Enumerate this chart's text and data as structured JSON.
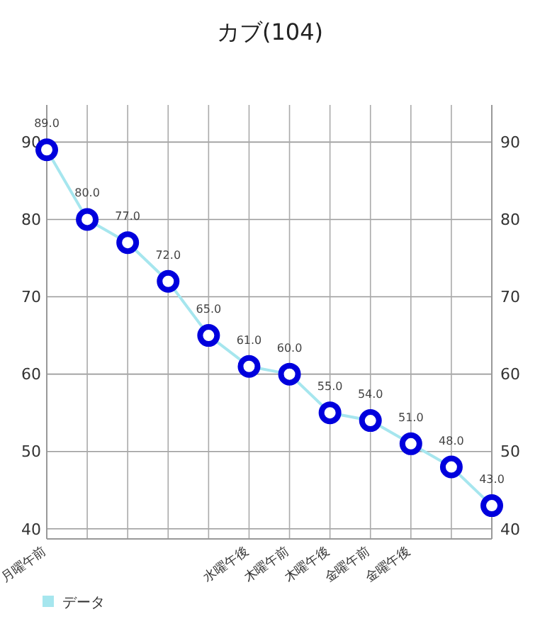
{
  "chart_data": {
    "type": "line",
    "title": "カブ(104)",
    "categories": [
      "月曜午前",
      null,
      null,
      null,
      null,
      "水曜午後",
      "木曜午前",
      "木曜午後",
      "金曜午前",
      "金曜午後",
      null,
      null
    ],
    "series": [
      {
        "name": "データ",
        "color": "#a6e6ee",
        "values": [
          89,
          80,
          77,
          72,
          65,
          61,
          60,
          55,
          54,
          51,
          48,
          43
        ],
        "value_labels": [
          "89.0",
          "80.0",
          "77.0",
          "72.0",
          "65.0",
          "61.0",
          "60.0",
          "55.0",
          "54.0",
          "51.0",
          "48.0",
          "43.0"
        ]
      }
    ],
    "ylim": [
      38.7,
      94.8
    ],
    "yticks": [
      40,
      50,
      60,
      70,
      80,
      90
    ],
    "y2lim": [
      38.7,
      94.8
    ],
    "y2ticks": [
      40,
      50,
      60,
      70,
      80,
      90
    ],
    "grid": true,
    "legend": "bottom left",
    "marker": "circle",
    "line_style": "solid"
  }
}
